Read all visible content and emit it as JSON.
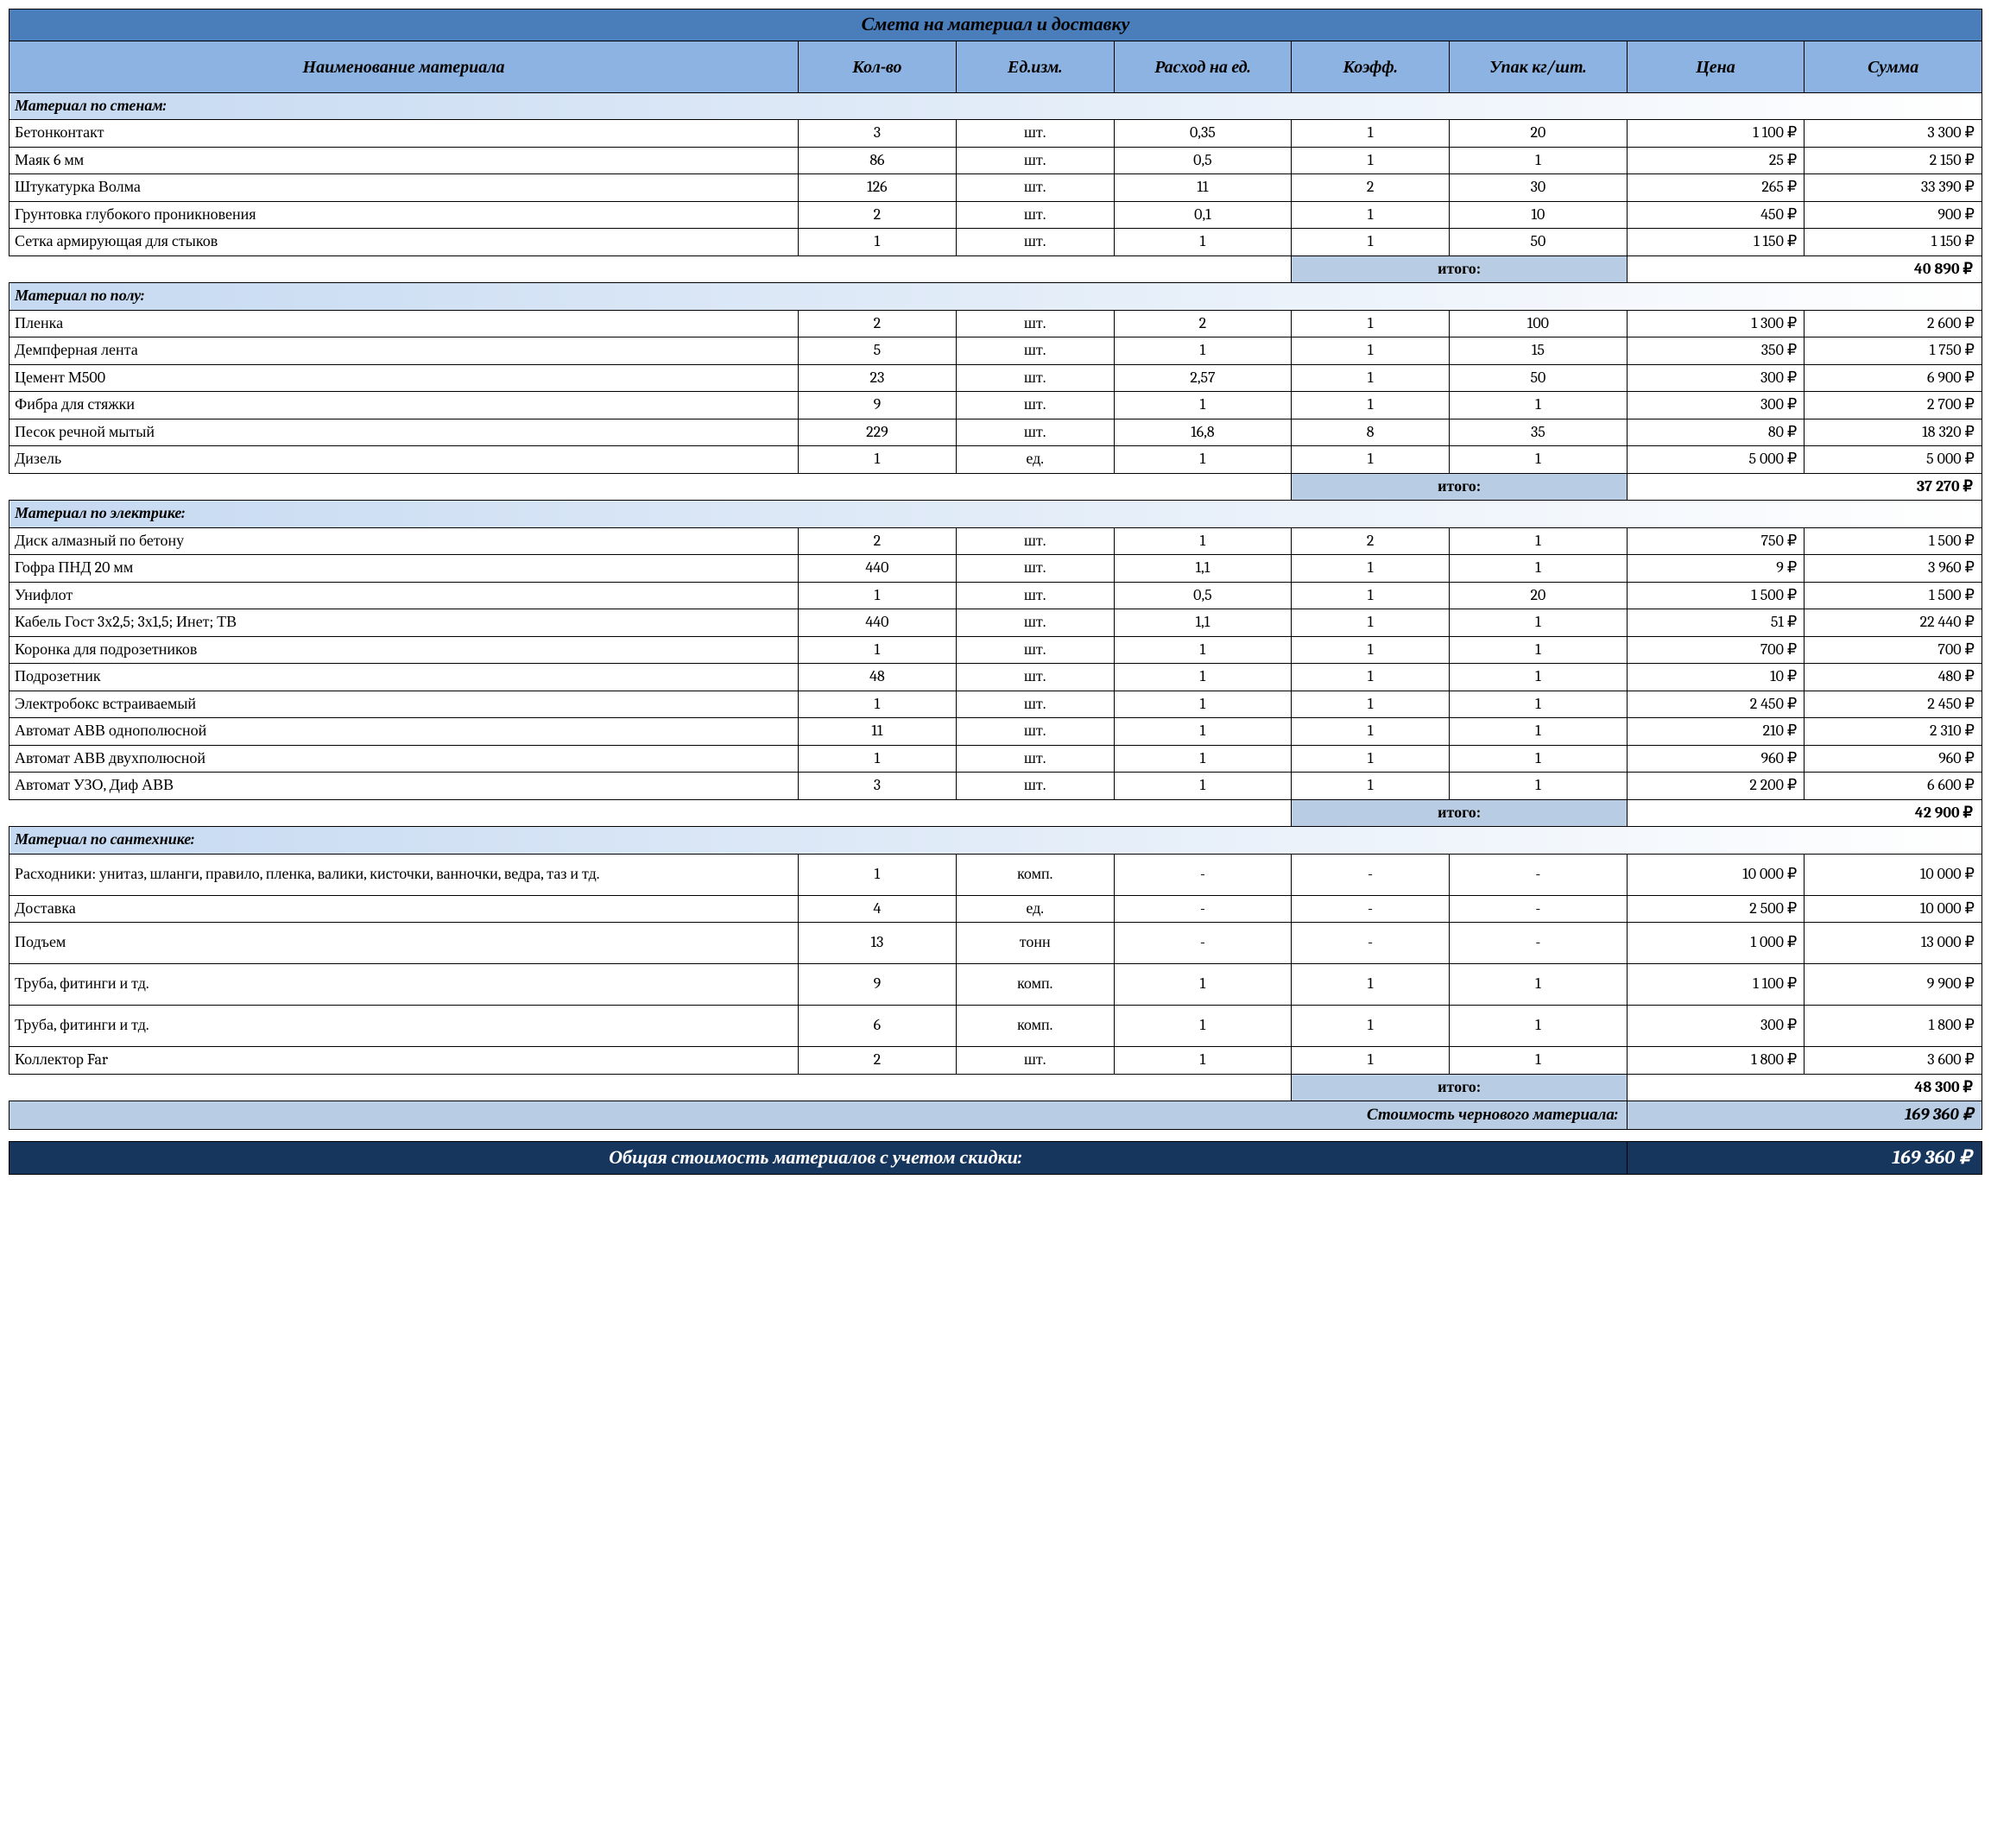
{
  "style": {
    "type": "table",
    "colors": {
      "title_bg": "#4a7ebb",
      "header_bg": "#8db3e2",
      "section_gradient_from": "#c5d9f1",
      "section_gradient_to": "#ffffff",
      "subtotal_label_bg": "#b8cce4",
      "grand_bg": "#b8cce4",
      "discount_bg": "#17365d",
      "discount_fg": "#ffffff",
      "border": "#000000",
      "text": "#000000"
    },
    "font_family": "Cambria",
    "title_fontsize": 22,
    "header_fontsize": 20,
    "body_fontsize": 18,
    "discount_fontsize": 22,
    "column_widths_pct": [
      40,
      8,
      8,
      9,
      8,
      9,
      9,
      9
    ]
  },
  "title": "Смета на материал и доставку",
  "columns": [
    "Наименование материала",
    "Кол-во",
    "Ед.изм.",
    "Расход на ед.",
    "Коэфф.",
    "Упак кг/шт.",
    "Цена",
    "Сумма"
  ],
  "currency": "₽",
  "subtotal_label": "итого:",
  "sections": [
    {
      "title": "Материал по стенам:",
      "rows": [
        {
          "name": "Бетонконтакт",
          "qty": "3",
          "unit": "шт.",
          "rate": "0,35",
          "coef": "1",
          "pack": "20",
          "price": "1 100 ₽",
          "sum": "3 300 ₽"
        },
        {
          "name": "Маяк 6 мм",
          "qty": "86",
          "unit": "шт.",
          "rate": "0,5",
          "coef": "1",
          "pack": "1",
          "price": "25 ₽",
          "sum": "2 150 ₽"
        },
        {
          "name": "Штукатурка Волма",
          "qty": "126",
          "unit": "шт.",
          "rate": "11",
          "coef": "2",
          "pack": "30",
          "price": "265 ₽",
          "sum": "33 390 ₽"
        },
        {
          "name": "Грунтовка глубокого проникновения",
          "qty": "2",
          "unit": "шт.",
          "rate": "0,1",
          "coef": "1",
          "pack": "10",
          "price": "450 ₽",
          "sum": "900 ₽"
        },
        {
          "name": "Сетка армирующая для стыков",
          "qty": "1",
          "unit": "шт.",
          "rate": "1",
          "coef": "1",
          "pack": "50",
          "price": "1 150 ₽",
          "sum": "1 150 ₽"
        }
      ],
      "subtotal": "40 890 ₽"
    },
    {
      "title": "Материал по полу:",
      "rows": [
        {
          "name": "Пленка",
          "qty": "2",
          "unit": "шт.",
          "rate": "2",
          "coef": "1",
          "pack": "100",
          "price": "1 300 ₽",
          "sum": "2 600 ₽"
        },
        {
          "name": "Демпферная лента",
          "qty": "5",
          "unit": "шт.",
          "rate": "1",
          "coef": "1",
          "pack": "15",
          "price": "350 ₽",
          "sum": "1 750 ₽"
        },
        {
          "name": "Цемент М500",
          "qty": "23",
          "unit": "шт.",
          "rate": "2,57",
          "coef": "1",
          "pack": "50",
          "price": "300 ₽",
          "sum": "6 900 ₽"
        },
        {
          "name": "Фибра для стяжки",
          "qty": "9",
          "unit": "шт.",
          "rate": "1",
          "coef": "1",
          "pack": "1",
          "price": "300 ₽",
          "sum": "2 700 ₽"
        },
        {
          "name": "Песок речной мытый",
          "qty": "229",
          "unit": "шт.",
          "rate": "16,8",
          "coef": "8",
          "pack": "35",
          "price": "80 ₽",
          "sum": "18 320 ₽"
        },
        {
          "name": "Дизель",
          "qty": "1",
          "unit": "ед.",
          "rate": "1",
          "coef": "1",
          "pack": "1",
          "price": "5 000 ₽",
          "sum": "5 000 ₽"
        }
      ],
      "subtotal": "37 270 ₽"
    },
    {
      "title": "Материал по электрике:",
      "rows": [
        {
          "name": "Диск алмазный по бетону",
          "qty": "2",
          "unit": "шт.",
          "rate": "1",
          "coef": "2",
          "pack": "1",
          "price": "750 ₽",
          "sum": "1 500 ₽"
        },
        {
          "name": "Гофра ПНД 20 мм",
          "qty": "440",
          "unit": "шт.",
          "rate": "1,1",
          "coef": "1",
          "pack": "1",
          "price": "9 ₽",
          "sum": "3 960 ₽"
        },
        {
          "name": "Унифлот",
          "qty": "1",
          "unit": "шт.",
          "rate": "0,5",
          "coef": "1",
          "pack": "20",
          "price": "1 500 ₽",
          "sum": "1 500 ₽"
        },
        {
          "name": "Кабель Гост 3х2,5; 3х1,5; Инет; ТВ",
          "qty": "440",
          "unit": "шт.",
          "rate": "1,1",
          "coef": "1",
          "pack": "1",
          "price": "51 ₽",
          "sum": "22 440 ₽"
        },
        {
          "name": "Коронка для подрозетников",
          "qty": "1",
          "unit": "шт.",
          "rate": "1",
          "coef": "1",
          "pack": "1",
          "price": "700 ₽",
          "sum": "700 ₽"
        },
        {
          "name": "Подрозетник",
          "qty": "48",
          "unit": "шт.",
          "rate": "1",
          "coef": "1",
          "pack": "1",
          "price": "10 ₽",
          "sum": "480 ₽"
        },
        {
          "name": "Электробокс встраиваемый",
          "qty": "1",
          "unit": "шт.",
          "rate": "1",
          "coef": "1",
          "pack": "1",
          "price": "2 450 ₽",
          "sum": "2 450 ₽"
        },
        {
          "name": "Автомат АВВ однополюсной",
          "qty": "11",
          "unit": "шт.",
          "rate": "1",
          "coef": "1",
          "pack": "1",
          "price": "210 ₽",
          "sum": "2 310 ₽"
        },
        {
          "name": "Автомат АВВ двухполюсной",
          "qty": "1",
          "unit": "шт.",
          "rate": "1",
          "coef": "1",
          "pack": "1",
          "price": "960 ₽",
          "sum": "960 ₽"
        },
        {
          "name": "Автомат УЗО, Диф АВВ",
          "qty": "3",
          "unit": "шт.",
          "rate": "1",
          "coef": "1",
          "pack": "1",
          "price": "2 200 ₽",
          "sum": "6 600 ₽"
        }
      ],
      "subtotal": "42 900 ₽"
    },
    {
      "title": "Материал по сантехнике:",
      "rows": [
        {
          "name": "Расходники: унитаз, шланги, правило, пленка, валики, кисточки, ванночки, ведра, таз и тд.",
          "qty": "1",
          "unit": "комп.",
          "rate": "-",
          "coef": "-",
          "pack": "-",
          "price": "10 000 ₽",
          "sum": "10 000 ₽",
          "tall": true
        },
        {
          "name": "Доставка",
          "qty": "4",
          "unit": "ед.",
          "rate": "-",
          "coef": "-",
          "pack": "-",
          "price": "2 500 ₽",
          "sum": "10 000 ₽"
        },
        {
          "name": "Подъем",
          "qty": "13",
          "unit": "тонн",
          "rate": "-",
          "coef": "-",
          "pack": "-",
          "price": "1 000 ₽",
          "sum": "13 000 ₽",
          "tall": true
        },
        {
          "name": "Труба, фитинги и тд.",
          "qty": "9",
          "unit": "комп.",
          "rate": "1",
          "coef": "1",
          "pack": "1",
          "price": "1 100 ₽",
          "sum": "9 900 ₽",
          "tall": true
        },
        {
          "name": "Труба, фитинги и тд.",
          "qty": "6",
          "unit": "комп.",
          "rate": "1",
          "coef": "1",
          "pack": "1",
          "price": "300 ₽",
          "sum": "1 800 ₽",
          "tall": true
        },
        {
          "name": "Коллектор Far",
          "qty": "2",
          "unit": "шт.",
          "rate": "1",
          "coef": "1",
          "pack": "1",
          "price": "1 800 ₽",
          "sum": "3 600 ₽"
        }
      ],
      "subtotal": "48 300 ₽"
    }
  ],
  "grand": {
    "label": "Стоимость чернового материала:",
    "value": "169 360 ₽"
  },
  "discount": {
    "label": "Общая стоимость материалов с учетом скидки:",
    "value": "169 360 ₽"
  }
}
